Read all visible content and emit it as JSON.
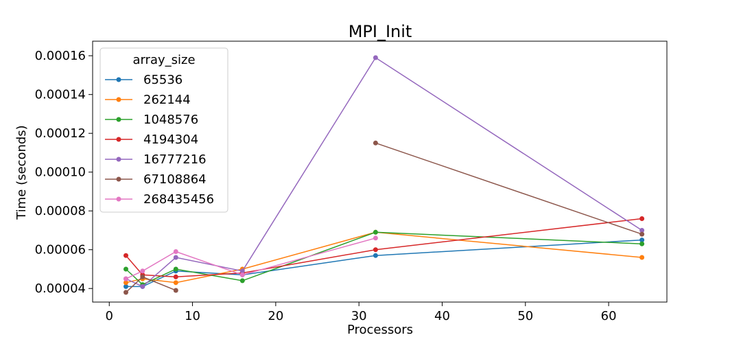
{
  "chart_data": {
    "type": "line",
    "title": "MPI_Init",
    "xlabel": "Processors",
    "ylabel": "Time (seconds)",
    "xlim": [
      -2,
      67
    ],
    "ylim": [
      3.3e-05,
      0.0001675
    ],
    "xticks": [
      0,
      10,
      20,
      30,
      40,
      50,
      60
    ],
    "xtick_labels": [
      "0",
      "10",
      "20",
      "30",
      "40",
      "50",
      "60"
    ],
    "yticks": [
      4e-05,
      6e-05,
      8e-05,
      0.0001,
      0.00012,
      0.00014,
      0.00016
    ],
    "ytick_labels": [
      "0.00004",
      "0.00006",
      "0.00008",
      "0.00010",
      "0.00012",
      "0.00014",
      "0.00016"
    ],
    "grid": false,
    "legend": {
      "title": "array_size",
      "placement": "top-left"
    },
    "series": [
      {
        "name": "65536",
        "color": "#1f77b4",
        "x": [
          2,
          4,
          8,
          16,
          32,
          64
        ],
        "y": [
          4.1e-05,
          4.1e-05,
          4.9e-05,
          4.7e-05,
          5.7e-05,
          6.5e-05
        ]
      },
      {
        "name": "262144",
        "color": "#ff7f0e",
        "x": [
          2,
          4,
          8,
          16,
          32,
          64
        ],
        "y": [
          4.3e-05,
          4.5e-05,
          4.3e-05,
          5e-05,
          6.9e-05,
          5.6e-05
        ]
      },
      {
        "name": "1048576",
        "color": "#2ca02c",
        "x": [
          2,
          4,
          8,
          16,
          32,
          64
        ],
        "y": [
          5e-05,
          4.2e-05,
          5e-05,
          4.4e-05,
          6.9e-05,
          6.3e-05
        ]
      },
      {
        "name": "4194304",
        "color": "#d62728",
        "x": [
          2,
          4,
          8,
          16,
          32,
          64
        ],
        "y": [
          5.7e-05,
          4.7e-05,
          4.6e-05,
          4.8e-05,
          6e-05,
          7.6e-05
        ]
      },
      {
        "name": "16777216",
        "color": "#9467bd",
        "x": [
          2,
          4,
          8,
          16,
          32,
          64
        ],
        "y": [
          4.5e-05,
          4.1e-05,
          5.6e-05,
          4.9e-05,
          0.000159,
          7e-05
        ]
      },
      {
        "name": "67108864",
        "color": "#8c564b",
        "x": [
          2,
          4,
          8,
          null,
          32,
          64
        ],
        "y": [
          3.8e-05,
          4.6e-05,
          3.9e-05,
          null,
          0.000115,
          6.8e-05
        ]
      },
      {
        "name": "268435456",
        "color": "#e377c2",
        "x": [
          2,
          4,
          8,
          16,
          32
        ],
        "y": [
          4.5e-05,
          4.9e-05,
          5.9e-05,
          4.7e-05,
          6.6e-05
        ]
      }
    ]
  }
}
